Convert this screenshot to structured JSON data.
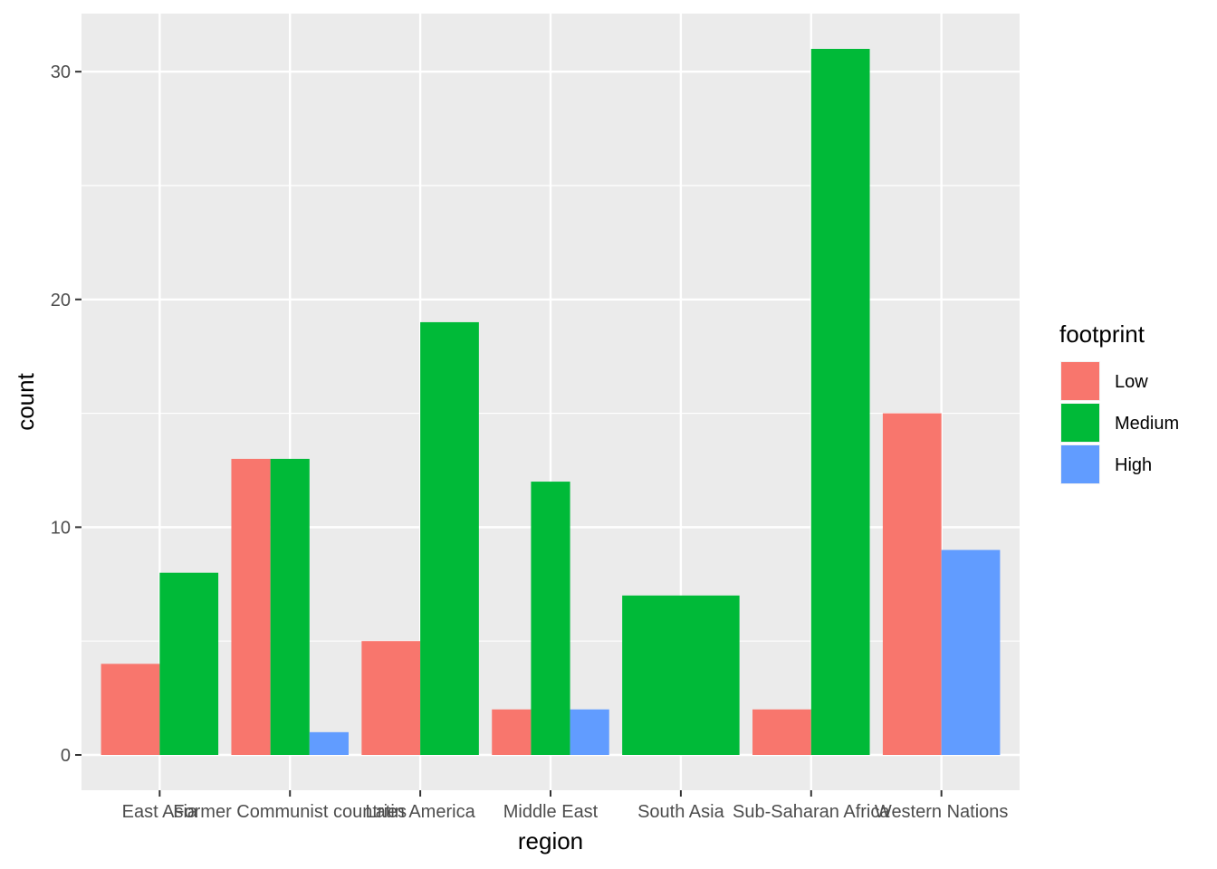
{
  "chart_data": {
    "type": "bar",
    "xlabel": "region",
    "ylabel": "count",
    "categories": [
      "East Asia",
      "Former Communist countries",
      "Latin America",
      "Middle East",
      "South Asia",
      "Sub-Saharan Africa",
      "Western Nations"
    ],
    "yticks": [
      0,
      10,
      20,
      30
    ],
    "ylim": [
      -1.55,
      32.55
    ],
    "grid": true,
    "legend": {
      "title": "footprint",
      "position": "right"
    },
    "series": [
      {
        "name": "Low",
        "color": "#F8766D",
        "values": [
          4,
          13,
          5,
          2,
          0,
          2,
          15
        ]
      },
      {
        "name": "Medium",
        "color": "#00BA38",
        "values": [
          8,
          13,
          19,
          12,
          7,
          31,
          0
        ]
      },
      {
        "name": "High",
        "color": "#619CFF",
        "values": [
          0,
          1,
          0,
          2,
          0,
          0,
          9
        ]
      }
    ]
  }
}
